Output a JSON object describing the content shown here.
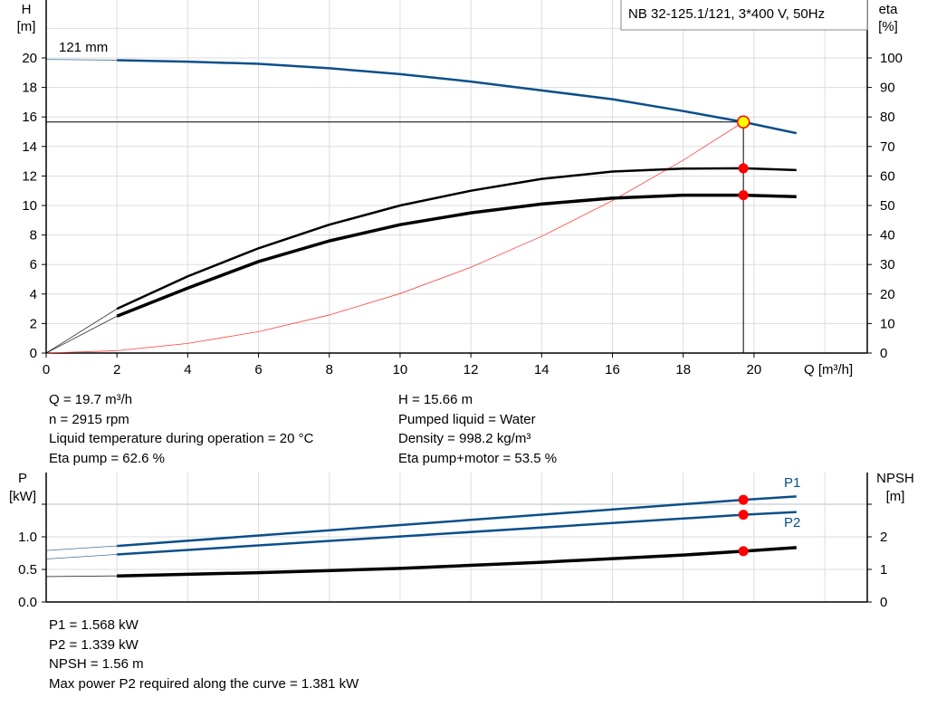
{
  "chart_data": [
    {
      "type": "line",
      "title": "NB 32-125.1/121, 3*400 V, 50Hz",
      "xlabel": "Q [m³/h]",
      "ylabel": "H\n[m]",
      "y2label": "eta\n[%]",
      "xlim": [
        0,
        23.2
      ],
      "ylim": [
        0,
        20
      ],
      "y2lim": [
        0,
        100
      ],
      "xticks": [
        0,
        2,
        4,
        6,
        8,
        10,
        12,
        14,
        16,
        18,
        20
      ],
      "yticks": [
        0,
        2,
        4,
        6,
        8,
        10,
        12,
        14,
        16,
        18,
        20
      ],
      "y2ticks": [
        0,
        10,
        20,
        30,
        40,
        50,
        60,
        70,
        80,
        90,
        100
      ],
      "grid": true,
      "curve_label": "121 mm",
      "series": [
        {
          "key": "H",
          "axis": "left",
          "color": "#0b4f8a",
          "x": [
            0,
            2,
            4,
            6,
            8,
            10,
            12,
            14,
            16,
            18,
            19.7,
            21.2
          ],
          "y": [
            19.9,
            19.85,
            19.75,
            19.6,
            19.3,
            18.9,
            18.4,
            17.8,
            17.2,
            16.4,
            15.66,
            14.9
          ]
        },
        {
          "key": "eta_pump",
          "axis": "right",
          "color": "#000000",
          "x": [
            0,
            2,
            4,
            6,
            8,
            10,
            12,
            14,
            16,
            18,
            19.7,
            21.2
          ],
          "y": [
            0,
            15,
            26,
            35.5,
            43.5,
            50,
            55,
            59,
            61.5,
            62.5,
            62.6,
            62
          ]
        },
        {
          "key": "eta_pump_motor",
          "axis": "right",
          "color": "#000000",
          "x": [
            0,
            2,
            4,
            6,
            8,
            10,
            12,
            14,
            16,
            18,
            19.7,
            21.2
          ],
          "y": [
            0,
            12.5,
            22,
            31,
            38,
            43.5,
            47.5,
            50.5,
            52.5,
            53.5,
            53.5,
            53
          ]
        },
        {
          "key": "system_curve",
          "axis": "left",
          "color": "#ff4040",
          "x": [
            0,
            2,
            4,
            6,
            8,
            10,
            12,
            14,
            16,
            18,
            19.7
          ],
          "y": [
            0,
            0.16,
            0.65,
            1.45,
            2.58,
            4.03,
            5.81,
            7.91,
            10.33,
            13.07,
            15.66
          ]
        }
      ],
      "duty_point": {
        "Q": 19.7,
        "H": 15.66,
        "eta_pump": 62.6,
        "eta_pump_motor": 53.5
      }
    },
    {
      "type": "line",
      "ylabel": "P\n[kW]",
      "y2label": "NPSH\n[m]",
      "xlim": [
        0,
        23.2
      ],
      "ylim": [
        0,
        1.8
      ],
      "y2lim": [
        0,
        3.6
      ],
      "yticks": [
        "0.0",
        "0.5",
        "1.0"
      ],
      "y2ticks": [
        "0",
        "1",
        "2"
      ],
      "grid": true,
      "series": [
        {
          "name": "P1",
          "axis": "left",
          "color": "#0b4f8a",
          "x": [
            0,
            2,
            19.7,
            21.2
          ],
          "y": [
            0.79,
            0.86,
            1.568,
            1.62
          ]
        },
        {
          "name": "P2",
          "axis": "left",
          "color": "#0b4f8a",
          "x": [
            0,
            2,
            19.7,
            21.2
          ],
          "y": [
            0.66,
            0.73,
            1.339,
            1.38
          ]
        },
        {
          "key": "NPSH",
          "axis": "right",
          "color": "#000000",
          "x": [
            0,
            2,
            6,
            10,
            14,
            18,
            19.7,
            21.2
          ],
          "y": [
            0.78,
            0.8,
            0.9,
            1.03,
            1.22,
            1.44,
            1.56,
            1.67
          ]
        }
      ]
    }
  ],
  "results_top": {
    "left": [
      "Q = 19.7 m³/h",
      "n = 2915 rpm",
      "Liquid temperature during operation = 20 °C",
      "Eta pump = 62.6 %"
    ],
    "right": [
      "H = 15.66 m",
      "Pumped liquid = Water",
      "Density = 998.2 kg/m³",
      "Eta pump+motor = 53.5 %"
    ]
  },
  "results_bottom": [
    "P1 = 1.568 kW",
    "P2 = 1.339 kW",
    "NPSH = 1.56 m",
    "Max power P2 required along the curve = 1.381 kW"
  ]
}
